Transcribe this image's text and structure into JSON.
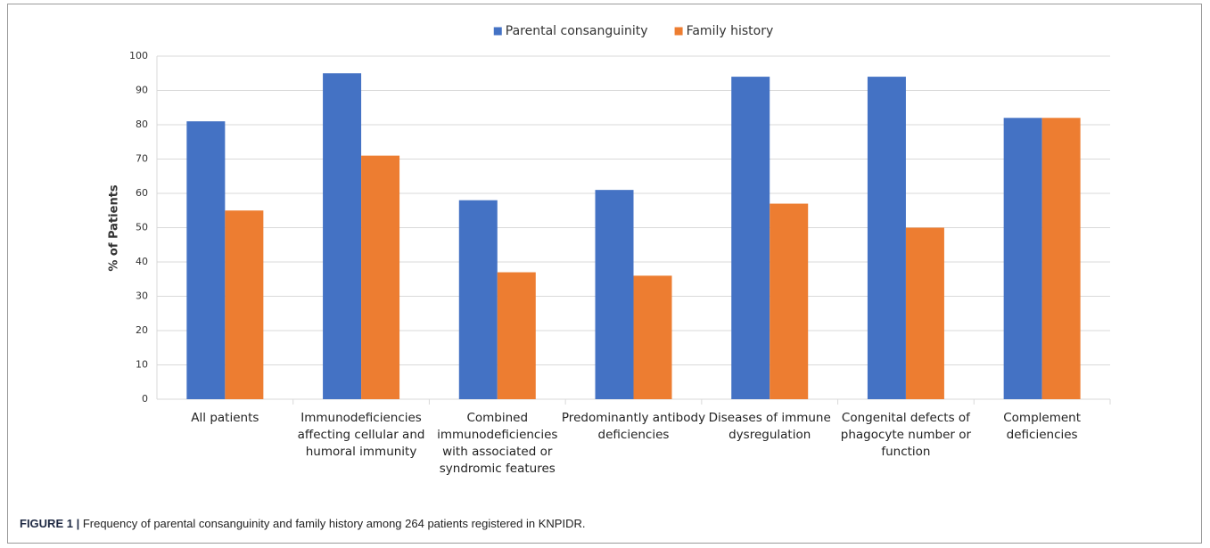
{
  "chart_data": {
    "type": "bar",
    "categories": [
      "All patients",
      "Immunodeficiencies affecting cellular and humoral immunity",
      "Combined immunodeficiencies with associated or syndromic features",
      "Predominantly antibody deficiencies",
      "Diseases of immune dysregulation",
      "Congenital defects of phagocyte number or function",
      "Complement deficiencies"
    ],
    "series": [
      {
        "name": "Parental consanguinity",
        "color": "#4472c4",
        "values": [
          81,
          95,
          58,
          61,
          94,
          94,
          82
        ]
      },
      {
        "name": "Family history",
        "color": "#ed7d31",
        "values": [
          55,
          71,
          37,
          36,
          57,
          50,
          82
        ]
      }
    ],
    "y_label": "% of Patients",
    "ylim": [
      0,
      100
    ],
    "yticks": [
      0,
      10,
      20,
      30,
      40,
      50,
      60,
      70,
      80,
      90,
      100
    ],
    "grid": true,
    "legend": "top"
  },
  "caption": {
    "label": "FIGURE 1 |",
    "text": "Frequency of parental consanguinity and family history among 264 patients registered in KNPIDR."
  }
}
